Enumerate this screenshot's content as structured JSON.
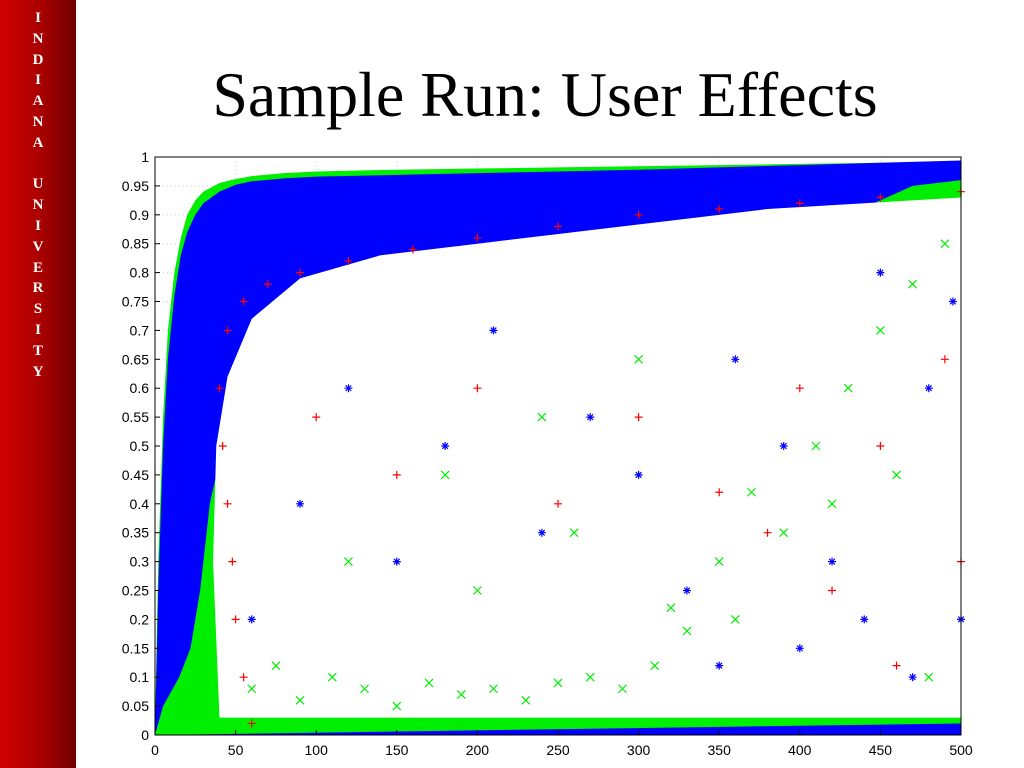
{
  "sidebar": {
    "letters": [
      "I",
      "N",
      "D",
      "I",
      "A",
      "N",
      "A",
      "",
      "U",
      "N",
      "I",
      "V",
      "E",
      "R",
      "S",
      "I",
      "T",
      "Y"
    ]
  },
  "slide": {
    "title": "Sample Run: User Effects"
  },
  "colors": {
    "sidebar_red": "#c00000",
    "series_green": "#00ee00",
    "series_blue": "#0000ff",
    "series_red": "#ff0000"
  },
  "chart_data": {
    "type": "scatter",
    "title": "",
    "xlabel": "",
    "ylabel": "",
    "xlim": [
      0,
      500
    ],
    "ylim": [
      0,
      1
    ],
    "grid": true,
    "x_ticks": [
      0,
      50,
      100,
      150,
      200,
      250,
      300,
      350,
      400,
      450,
      500
    ],
    "y_ticks": [
      0,
      0.05,
      0.1,
      0.15,
      0.2,
      0.25,
      0.3,
      0.35,
      0.4,
      0.45,
      0.5,
      0.55,
      0.6,
      0.65,
      0.7,
      0.75,
      0.8,
      0.85,
      0.9,
      0.95,
      1
    ],
    "series": [
      {
        "marker": "x",
        "color": "#00ee00",
        "dense_band": {
          "x": [
            0,
            2,
            5,
            8,
            12,
            16,
            20,
            25,
            30,
            40,
            50,
            60,
            80,
            100,
            150,
            200,
            250,
            300,
            350,
            400,
            450,
            500
          ],
          "y_upper": [
            0.02,
            0.3,
            0.55,
            0.7,
            0.8,
            0.86,
            0.9,
            0.925,
            0.94,
            0.955,
            0.962,
            0.967,
            0.972,
            0.975,
            0.978,
            0.98,
            0.982,
            0.984,
            0.986,
            0.988,
            0.99,
            0.992
          ]
        },
        "points": [
          [
            60,
            0.08
          ],
          [
            75,
            0.12
          ],
          [
            90,
            0.06
          ],
          [
            110,
            0.1
          ],
          [
            130,
            0.08
          ],
          [
            150,
            0.05
          ],
          [
            170,
            0.09
          ],
          [
            190,
            0.07
          ],
          [
            210,
            0.08
          ],
          [
            230,
            0.06
          ],
          [
            250,
            0.09
          ],
          [
            270,
            0.1
          ],
          [
            290,
            0.08
          ],
          [
            310,
            0.12
          ],
          [
            330,
            0.18
          ],
          [
            350,
            0.3
          ],
          [
            370,
            0.42
          ],
          [
            390,
            0.35
          ],
          [
            410,
            0.5
          ],
          [
            430,
            0.6
          ],
          [
            450,
            0.7
          ],
          [
            470,
            0.78
          ],
          [
            490,
            0.85
          ],
          [
            120,
            0.3
          ],
          [
            180,
            0.45
          ],
          [
            240,
            0.55
          ],
          [
            300,
            0.65
          ],
          [
            200,
            0.25
          ],
          [
            260,
            0.35
          ],
          [
            320,
            0.22
          ],
          [
            360,
            0.2
          ],
          [
            420,
            0.4
          ],
          [
            460,
            0.45
          ],
          [
            480,
            0.1
          ]
        ]
      },
      {
        "marker": "*",
        "color": "#0000ff",
        "dense_band": {
          "x": [
            0,
            2,
            5,
            8,
            12,
            16,
            20,
            25,
            30,
            40,
            50,
            60,
            80,
            100,
            150,
            200,
            250,
            300,
            350,
            400,
            450,
            500
          ],
          "y_upper": [
            0,
            0.25,
            0.5,
            0.65,
            0.76,
            0.83,
            0.87,
            0.9,
            0.92,
            0.94,
            0.952,
            0.958,
            0.963,
            0.966,
            0.969,
            0.972,
            0.975,
            0.978,
            0.982,
            0.986,
            0.99,
            0.994
          ],
          "x_min_at_y": [
            0.0,
            5.0,
            15.0,
            22.0,
            25.0,
            28.0,
            30.0,
            32.0,
            34.0,
            38.0,
            45.0,
            60.0,
            80.0,
            140.0,
            200.0,
            260.0,
            320.0,
            380.0,
            430.0,
            470.0,
            500.0
          ],
          "y_lower": 0.0
        },
        "points": [
          [
            60,
            0.2
          ],
          [
            90,
            0.4
          ],
          [
            120,
            0.6
          ],
          [
            150,
            0.3
          ],
          [
            180,
            0.5
          ],
          [
            210,
            0.7
          ],
          [
            240,
            0.35
          ],
          [
            270,
            0.55
          ],
          [
            300,
            0.45
          ],
          [
            330,
            0.25
          ],
          [
            360,
            0.65
          ],
          [
            390,
            0.5
          ],
          [
            420,
            0.3
          ],
          [
            450,
            0.8
          ],
          [
            480,
            0.6
          ],
          [
            500,
            0.2
          ],
          [
            350,
            0.12
          ],
          [
            400,
            0.15
          ],
          [
            440,
            0.2
          ],
          [
            470,
            0.1
          ],
          [
            495,
            0.75
          ]
        ]
      },
      {
        "marker": "+",
        "color": "#ff0000",
        "points": [
          [
            45,
            0.7
          ],
          [
            55,
            0.75
          ],
          [
            70,
            0.78
          ],
          [
            90,
            0.8
          ],
          [
            120,
            0.82
          ],
          [
            160,
            0.84
          ],
          [
            200,
            0.86
          ],
          [
            250,
            0.88
          ],
          [
            300,
            0.9
          ],
          [
            350,
            0.91
          ],
          [
            400,
            0.92
          ],
          [
            450,
            0.93
          ],
          [
            500,
            0.94
          ],
          [
            40,
            0.6
          ],
          [
            42,
            0.5
          ],
          [
            45,
            0.4
          ],
          [
            48,
            0.3
          ],
          [
            50,
            0.2
          ],
          [
            55,
            0.1
          ],
          [
            60,
            0.02
          ],
          [
            100,
            0.55
          ],
          [
            150,
            0.45
          ],
          [
            200,
            0.6
          ],
          [
            250,
            0.4
          ],
          [
            300,
            0.55
          ],
          [
            350,
            0.42
          ],
          [
            400,
            0.6
          ],
          [
            450,
            0.5
          ],
          [
            490,
            0.65
          ],
          [
            380,
            0.35
          ],
          [
            420,
            0.25
          ],
          [
            460,
            0.12
          ],
          [
            500,
            0.3
          ]
        ]
      }
    ]
  }
}
